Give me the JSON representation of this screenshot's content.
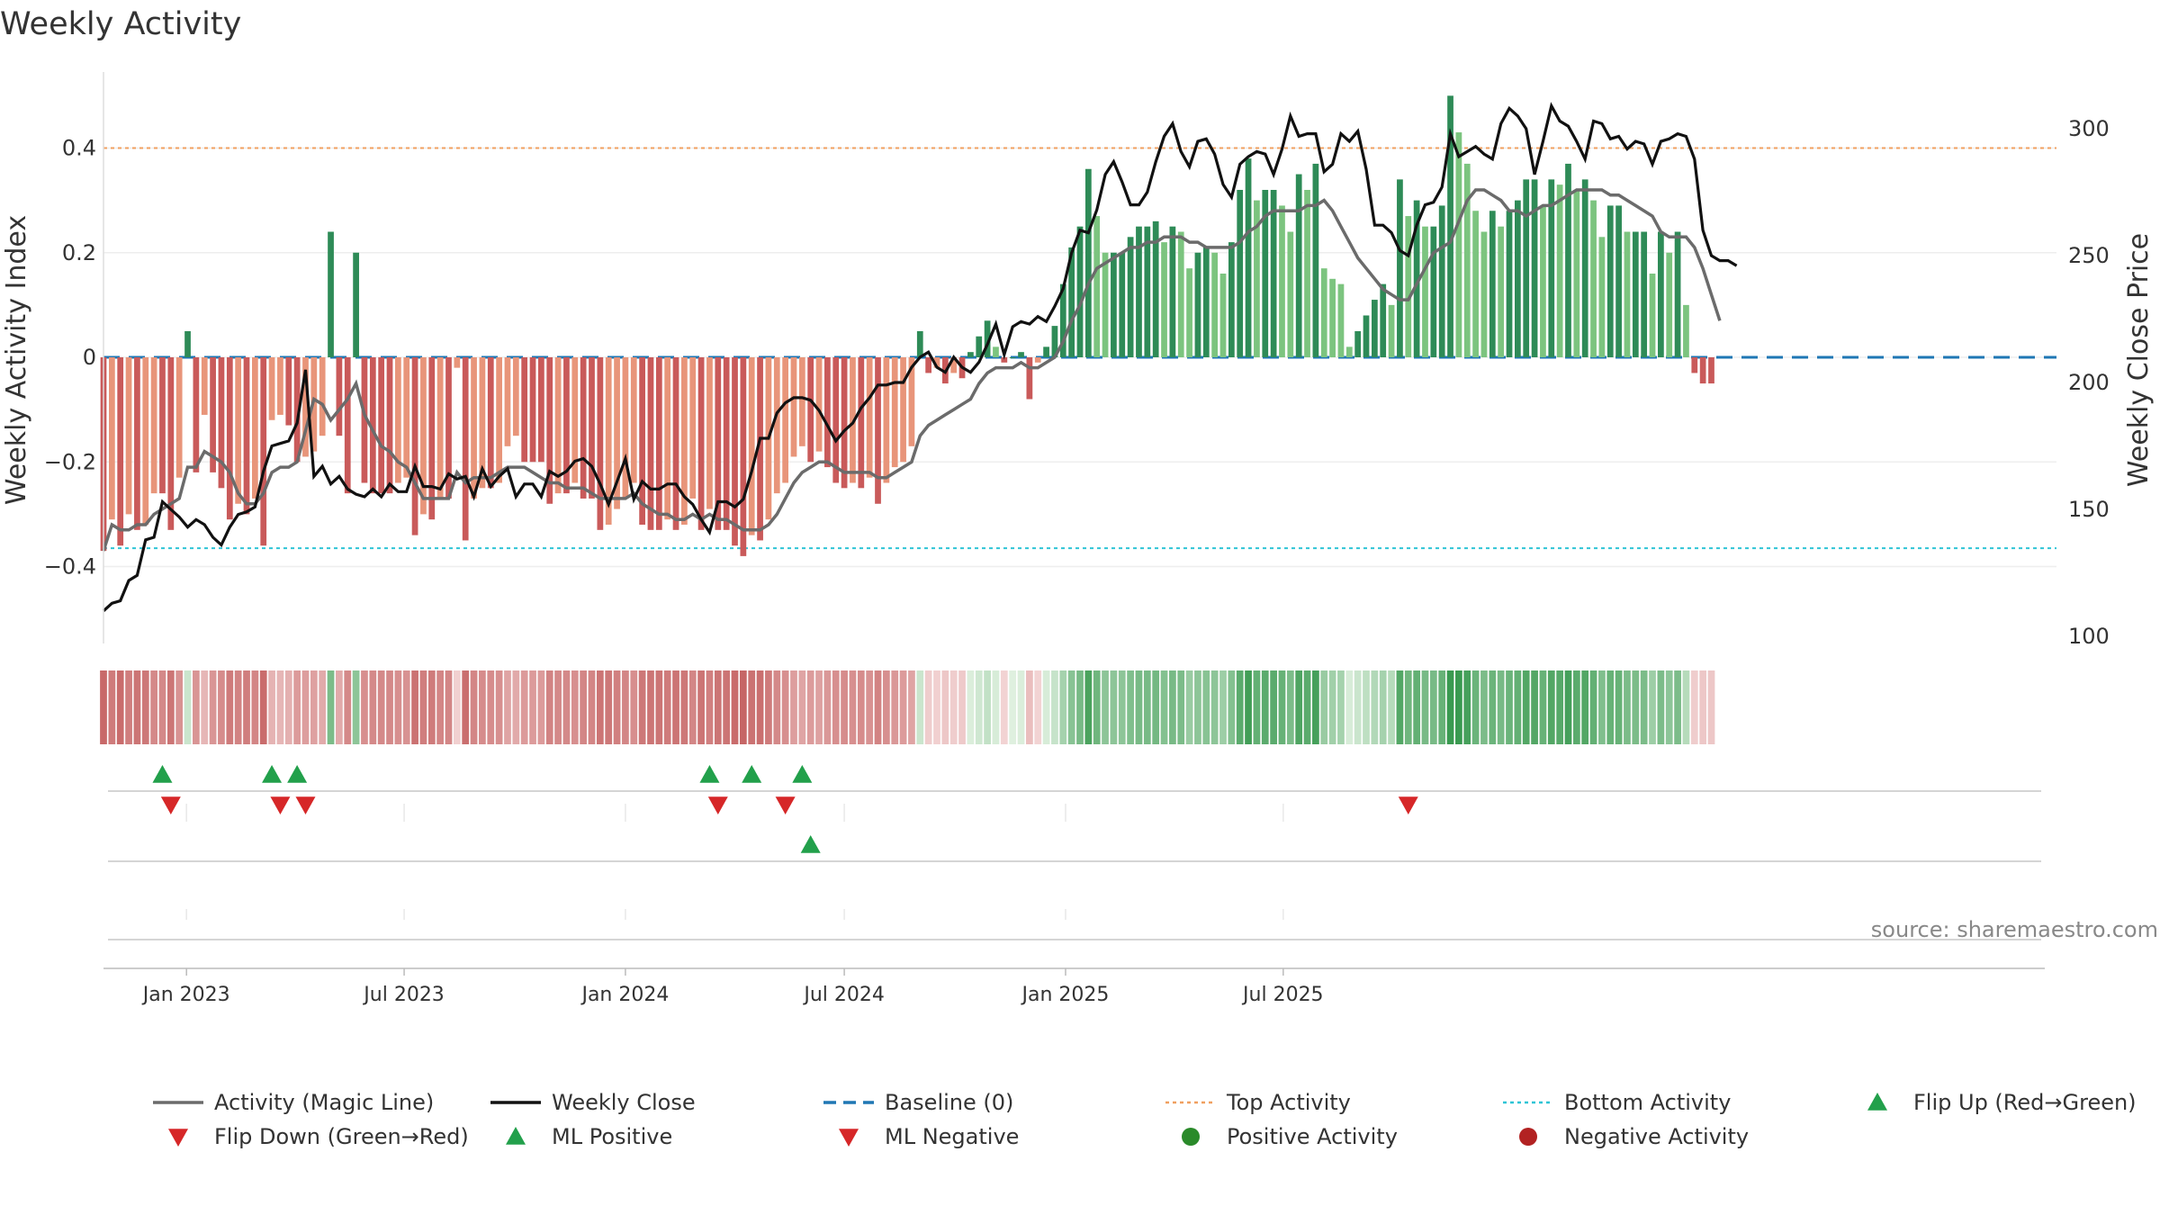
{
  "chart_data": {
    "type": "bar",
    "title": "Weekly Activity",
    "ylabel": "Weekly Activity Index",
    "ylabel_right": "Weekly Close Price",
    "ylim": [
      -0.55,
      0.55
    ],
    "ylim_right": [
      100,
      320
    ],
    "yticks": [
      {
        "v": 0.4,
        "label": "0.4"
      },
      {
        "v": 0.2,
        "label": "0.2"
      },
      {
        "v": 0,
        "label": "0"
      },
      {
        "v": -0.2,
        "label": "−0.2"
      },
      {
        "v": -0.4,
        "label": "−0.4"
      }
    ],
    "yticks_right": [
      {
        "v": 300,
        "label": "300"
      },
      {
        "v": 250,
        "label": "250"
      },
      {
        "v": 200,
        "label": "200"
      },
      {
        "v": 150,
        "label": "150"
      },
      {
        "v": 100,
        "label": "100"
      }
    ],
    "x_start": "2022-10-24",
    "x_end": "2025-09-29",
    "x_ticks": [
      "Jan 2023",
      "Jul 2023",
      "Jan 2024",
      "Jul 2024",
      "Jan 2025",
      "Jul 2025"
    ],
    "top_activity": 0.4,
    "bottom_activity": -0.365,
    "activity_bars": [
      -0.37,
      -0.31,
      -0.36,
      -0.3,
      -0.33,
      -0.32,
      -0.26,
      -0.26,
      -0.33,
      -0.23,
      0.05,
      -0.22,
      -0.11,
      -0.22,
      -0.25,
      -0.31,
      -0.28,
      -0.3,
      -0.27,
      -0.36,
      -0.12,
      -0.11,
      -0.13,
      -0.2,
      -0.19,
      -0.18,
      -0.15,
      0.24,
      -0.15,
      -0.26,
      0.2,
      -0.24,
      -0.26,
      -0.26,
      -0.26,
      -0.24,
      -0.23,
      -0.34,
      -0.3,
      -0.31,
      -0.27,
      -0.27,
      -0.02,
      -0.35,
      -0.27,
      -0.25,
      -0.25,
      -0.24,
      -0.17,
      -0.15,
      -0.2,
      -0.2,
      -0.2,
      -0.28,
      -0.26,
      -0.26,
      -0.24,
      -0.27,
      -0.27,
      -0.33,
      -0.32,
      -0.29,
      -0.27,
      -0.24,
      -0.32,
      -0.33,
      -0.33,
      -0.31,
      -0.33,
      -0.32,
      -0.27,
      -0.33,
      -0.29,
      -0.33,
      -0.33,
      -0.36,
      -0.38,
      -0.34,
      -0.35,
      -0.31,
      -0.26,
      -0.24,
      -0.19,
      -0.17,
      -0.2,
      -0.18,
      -0.21,
      -0.24,
      -0.25,
      -0.24,
      -0.25,
      -0.23,
      -0.28,
      -0.24,
      -0.21,
      -0.2,
      -0.17,
      0.05,
      -0.03,
      -0.02,
      -0.05,
      -0.03,
      -0.04,
      0.01,
      0.04,
      0.07,
      0.02,
      -0.01,
      0.0,
      0.01,
      -0.08,
      -0.01,
      0.02,
      0.06,
      0.14,
      0.21,
      0.25,
      0.36,
      0.27,
      0.2,
      0.2,
      0.2,
      0.23,
      0.25,
      0.25,
      0.26,
      0.22,
      0.25,
      0.24,
      0.17,
      0.2,
      0.21,
      0.2,
      0.16,
      0.22,
      0.32,
      0.38,
      0.3,
      0.32,
      0.32,
      0.29,
      0.24,
      0.35,
      0.32,
      0.37,
      0.17,
      0.15,
      0.14,
      0.02,
      0.05,
      0.08,
      0.11,
      0.14,
      0.1,
      0.34,
      0.27,
      0.3,
      0.25,
      0.25,
      0.29,
      0.5,
      0.43,
      0.37,
      0.28,
      0.24,
      0.28,
      0.25,
      0.28,
      0.3,
      0.34,
      0.34,
      0.29,
      0.34,
      0.33,
      0.37,
      0.32,
      0.34,
      0.3,
      0.23,
      0.29,
      0.29,
      0.24,
      0.24,
      0.24,
      0.16,
      0.24,
      0.2,
      0.24,
      0.1,
      -0.03,
      -0.05,
      -0.05
    ],
    "magic_line": [
      -0.37,
      -0.32,
      -0.33,
      -0.33,
      -0.32,
      -0.32,
      -0.3,
      -0.29,
      -0.28,
      -0.27,
      -0.21,
      -0.21,
      -0.18,
      -0.19,
      -0.2,
      -0.22,
      -0.26,
      -0.28,
      -0.28,
      -0.26,
      -0.22,
      -0.21,
      -0.21,
      -0.2,
      -0.14,
      -0.08,
      -0.09,
      -0.12,
      -0.1,
      -0.08,
      -0.05,
      -0.11,
      -0.14,
      -0.17,
      -0.18,
      -0.2,
      -0.21,
      -0.24,
      -0.27,
      -0.27,
      -0.27,
      -0.27,
      -0.22,
      -0.24,
      -0.23,
      -0.23,
      -0.23,
      -0.22,
      -0.21,
      -0.21,
      -0.21,
      -0.22,
      -0.23,
      -0.24,
      -0.24,
      -0.25,
      -0.25,
      -0.25,
      -0.26,
      -0.27,
      -0.27,
      -0.27,
      -0.27,
      -0.26,
      -0.28,
      -0.29,
      -0.3,
      -0.3,
      -0.31,
      -0.31,
      -0.3,
      -0.31,
      -0.3,
      -0.31,
      -0.31,
      -0.32,
      -0.33,
      -0.33,
      -0.33,
      -0.32,
      -0.3,
      -0.27,
      -0.24,
      -0.22,
      -0.21,
      -0.2,
      -0.2,
      -0.21,
      -0.22,
      -0.22,
      -0.22,
      -0.22,
      -0.23,
      -0.23,
      -0.22,
      -0.21,
      -0.2,
      -0.15,
      -0.13,
      -0.12,
      -0.11,
      -0.1,
      -0.09,
      -0.08,
      -0.05,
      -0.03,
      -0.02,
      -0.02,
      -0.02,
      -0.01,
      -0.02,
      -0.02,
      -0.01,
      0.0,
      0.03,
      0.07,
      0.1,
      0.14,
      0.17,
      0.18,
      0.19,
      0.2,
      0.21,
      0.21,
      0.22,
      0.22,
      0.23,
      0.23,
      0.23,
      0.22,
      0.22,
      0.21,
      0.21,
      0.21,
      0.21,
      0.22,
      0.24,
      0.25,
      0.27,
      0.28,
      0.28,
      0.28,
      0.28,
      0.29,
      0.29,
      0.3,
      0.28,
      0.25,
      0.22,
      0.19,
      0.17,
      0.15,
      0.13,
      0.12,
      0.11,
      0.11,
      0.14,
      0.17,
      0.2,
      0.21,
      0.22,
      0.26,
      0.3,
      0.32,
      0.32,
      0.31,
      0.3,
      0.28,
      0.28,
      0.27,
      0.28,
      0.29,
      0.29,
      0.3,
      0.31,
      0.32,
      0.32,
      0.32,
      0.32,
      0.31,
      0.31,
      0.3,
      0.29,
      0.28,
      0.27,
      0.24,
      0.23,
      0.23,
      0.23,
      0.21,
      0.17,
      0.12,
      0.07
    ],
    "weekly_close": [
      110,
      113,
      114,
      122,
      124,
      138,
      139,
      153,
      150,
      147,
      143,
      146,
      144,
      139,
      136,
      143,
      148,
      149,
      151,
      165,
      175,
      176,
      177,
      184,
      205,
      163,
      167,
      160,
      163,
      158,
      156,
      155,
      158,
      155,
      160,
      157,
      157,
      167,
      159,
      159,
      158,
      164,
      162,
      163,
      155,
      166,
      159,
      163,
      166,
      155,
      160,
      160,
      155,
      165,
      163,
      165,
      169,
      170,
      167,
      160,
      152,
      161,
      170,
      154,
      161,
      158,
      158,
      160,
      160,
      155,
      152,
      146,
      141,
      153,
      153,
      151,
      154,
      165,
      178,
      178,
      188,
      192,
      194,
      194,
      193,
      189,
      183,
      177,
      181,
      184,
      190,
      194,
      199,
      199,
      200,
      200,
      206,
      210,
      212,
      206,
      204,
      210,
      206,
      204,
      208,
      215,
      223,
      211,
      222,
      224,
      223,
      226,
      224,
      230,
      237,
      251,
      260,
      259,
      268,
      282,
      287,
      279,
      270,
      270,
      275,
      287,
      297,
      302,
      291,
      285,
      295,
      296,
      290,
      278,
      273,
      286,
      289,
      291,
      290,
      282,
      292,
      305,
      297,
      298,
      298,
      283,
      286,
      298,
      295,
      299,
      284,
      262,
      262,
      259,
      252,
      250,
      262,
      270,
      271,
      277,
      298,
      289,
      291,
      293,
      290,
      288,
      302,
      308,
      305,
      300,
      282,
      295,
      309,
      303,
      301,
      295,
      288,
      303,
      302,
      296,
      297,
      292,
      295,
      294,
      286,
      295,
      296,
      298,
      297,
      288,
      260,
      250,
      248,
      248,
      246
    ],
    "heat_strip": [
      -0.37,
      -0.31,
      -0.36,
      -0.3,
      -0.33,
      -0.32,
      -0.26,
      -0.26,
      -0.33,
      -0.23,
      0.05,
      -0.22,
      -0.11,
      -0.22,
      -0.25,
      -0.31,
      -0.28,
      -0.3,
      -0.27,
      -0.36,
      -0.12,
      -0.11,
      -0.13,
      -0.2,
      -0.19,
      -0.18,
      -0.15,
      0.24,
      -0.15,
      -0.26,
      0.2,
      -0.24,
      -0.26,
      -0.26,
      -0.26,
      -0.24,
      -0.23,
      -0.34,
      -0.3,
      -0.31,
      -0.27,
      -0.27,
      -0.02,
      -0.35,
      -0.27,
      -0.25,
      -0.25,
      -0.24,
      -0.17,
      -0.15,
      -0.2,
      -0.2,
      -0.2,
      -0.28,
      -0.26,
      -0.26,
      -0.24,
      -0.27,
      -0.27,
      -0.33,
      -0.32,
      -0.29,
      -0.27,
      -0.24,
      -0.32,
      -0.33,
      -0.33,
      -0.31,
      -0.33,
      -0.32,
      -0.27,
      -0.33,
      -0.29,
      -0.33,
      -0.33,
      -0.36,
      -0.38,
      -0.34,
      -0.35,
      -0.31,
      -0.26,
      -0.24,
      -0.19,
      -0.17,
      -0.2,
      -0.18,
      -0.21,
      -0.24,
      -0.25,
      -0.24,
      -0.25,
      -0.23,
      -0.28,
      -0.24,
      -0.21,
      -0.2,
      -0.17,
      0.05,
      -0.03,
      -0.02,
      -0.05,
      -0.03,
      -0.04,
      0.01,
      0.04,
      0.07,
      0.02,
      -0.01,
      0.0,
      0.01,
      -0.08,
      -0.01,
      0.02,
      0.06,
      0.14,
      0.21,
      0.25,
      0.36,
      0.27,
      0.2,
      0.2,
      0.2,
      0.23,
      0.25,
      0.25,
      0.26,
      0.22,
      0.25,
      0.24,
      0.17,
      0.2,
      0.21,
      0.2,
      0.16,
      0.22,
      0.32,
      0.38,
      0.3,
      0.32,
      0.32,
      0.29,
      0.24,
      0.35,
      0.32,
      0.37,
      0.17,
      0.15,
      0.14,
      0.02,
      0.05,
      0.08,
      0.11,
      0.14,
      0.1,
      0.34,
      0.27,
      0.3,
      0.25,
      0.25,
      0.29,
      0.5,
      0.43,
      0.37,
      0.28,
      0.24,
      0.28,
      0.25,
      0.28,
      0.3,
      0.34,
      0.34,
      0.29,
      0.34,
      0.33,
      0.37,
      0.32,
      0.34,
      0.3,
      0.23,
      0.29,
      0.29,
      0.24,
      0.24,
      0.24,
      0.16,
      0.24,
      0.2,
      0.24,
      0.1,
      -0.03,
      -0.05,
      -0.05
    ],
    "flip_up_weeks": [
      7,
      20,
      23,
      72,
      77,
      83
    ],
    "flip_down_weeks": [
      8,
      21,
      24,
      73,
      81,
      155
    ],
    "ml_positive_weeks": [
      84
    ],
    "ml_negative_weeks": [],
    "colors": {
      "neg_strong": "#c95a5a",
      "neg_light": "#e8957a",
      "pos_strong": "#2e8b57",
      "pos_light": "#7cc47f",
      "magic_line": "#6b6b6b",
      "weekly_close": "#111111",
      "baseline": "#1f77b4",
      "top_activity": "#f0a060",
      "bottom_activity": "#2ec4d6",
      "flip_up": "#22a04b",
      "flip_down": "#d62728",
      "ml_positive": "#22a04b",
      "ml_negative": "#d62728",
      "positive_activity": "#2a8a2a",
      "negative_activity": "#b22222"
    },
    "legend": [
      {
        "label": "Activity (Magic Line)",
        "marker": "line",
        "color": "#6b6b6b"
      },
      {
        "label": "Weekly Close",
        "marker": "line",
        "color": "#111111"
      },
      {
        "label": "Baseline (0)",
        "marker": "dash",
        "color": "#1f77b4"
      },
      {
        "label": "Top Activity",
        "marker": "dot",
        "color": "#f0a060"
      },
      {
        "label": "Bottom Activity",
        "marker": "dot",
        "color": "#2ec4d6"
      },
      {
        "label": "Flip Up (Red→Green)",
        "marker": "tri-up",
        "color": "#22a04b"
      },
      {
        "label": "Flip Down (Green→Red)",
        "marker": "tri-down",
        "color": "#d62728"
      },
      {
        "label": "ML Positive",
        "marker": "tri-up",
        "color": "#22a04b"
      },
      {
        "label": "ML Negative",
        "marker": "tri-down",
        "color": "#d62728"
      },
      {
        "label": "Positive Activity",
        "marker": "circle",
        "color": "#2a8a2a"
      },
      {
        "label": "Negative Activity",
        "marker": "circle",
        "color": "#b22222"
      }
    ],
    "source": "source: sharemaestro.com"
  }
}
